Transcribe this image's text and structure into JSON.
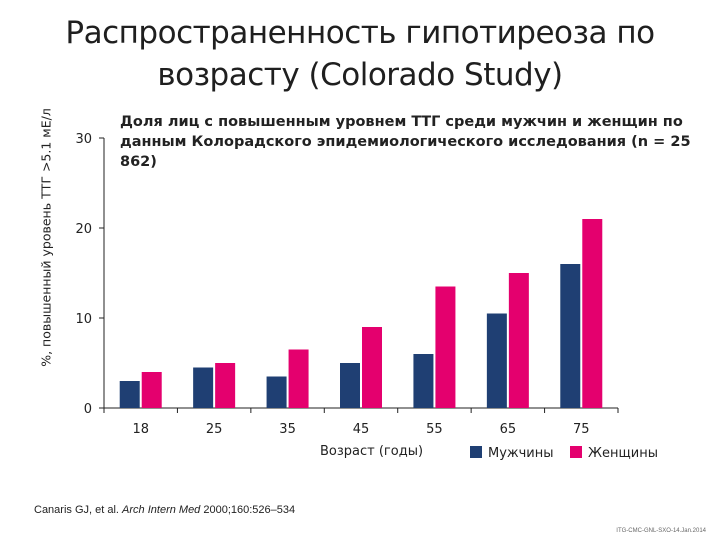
{
  "title": "Распространенность гипотиреоза по возрасту (Colorado Study)",
  "subtitle": "Доля лиц с повышенным уровнем ТТГ среди мужчин и женщин по данным Колорадского эпидемиологического исследования (n = 25 862)",
  "citation": {
    "authors": "Canaris GJ, et al.",
    "journal": "Arch Intern Med",
    "details": "2000;160:526–534"
  },
  "footer_code": "ITG-CMC-GNL-SXO-14.Jan.2014",
  "chart_data": {
    "type": "bar",
    "categories": [
      "18",
      "25",
      "35",
      "45",
      "55",
      "65",
      "75"
    ],
    "series": [
      {
        "name": "Мужчины",
        "color": "#1f3f73",
        "values": [
          3,
          4.5,
          3.5,
          5,
          6,
          10.5,
          16
        ]
      },
      {
        "name": "Женщины",
        "color": "#e4006e",
        "values": [
          4,
          5,
          6.5,
          9,
          13.5,
          15,
          21
        ]
      }
    ],
    "xlabel": "Возраст  (годы)",
    "ylabel": "%, повышенный уровень ТТГ >5.1 мЕ/л",
    "yticks": [
      "0",
      "10",
      "20",
      "30"
    ],
    "ylim": [
      0,
      30
    ],
    "grid": false,
    "legend": "bottom-right"
  }
}
